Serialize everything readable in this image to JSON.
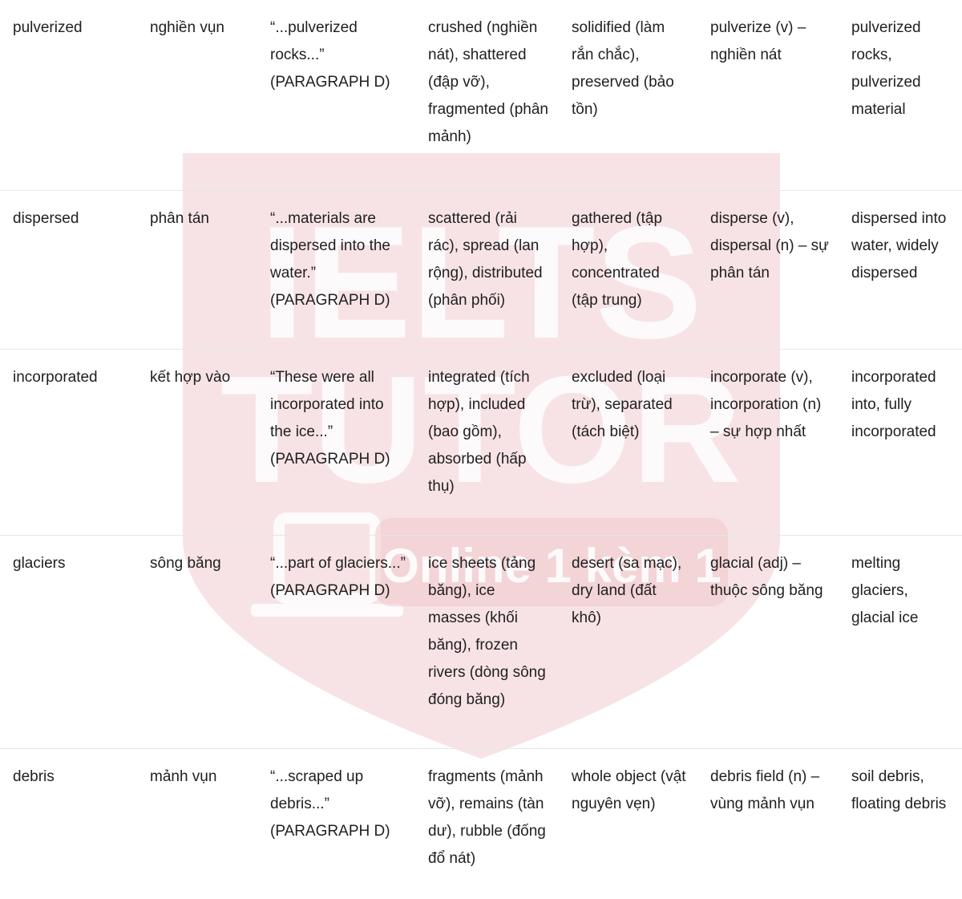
{
  "watermark": {
    "brand_line1": "IELTS",
    "brand_line2": "TUTOR",
    "tagline": "Online 1 kèm 1",
    "color": "#e8a9ad"
  },
  "rows": [
    {
      "word": "pulverized",
      "meaning": "nghiền vụn",
      "context": "“...pulverized rocks...” (PARAGRAPH D)",
      "synonyms": "crushed (nghiền nát), shattered (đập vỡ), fragmented (phân mảnh)",
      "antonyms": "solidified (làm rắn chắc), preserved (bảo tồn)",
      "word_family": "pulverize (v) – nghiền nát",
      "collocations": "pulverized rocks, pulverized material"
    },
    {
      "word": "dispersed",
      "meaning": "phân tán",
      "context": "“...materials are dispersed into the water.” (PARAGRAPH D)",
      "synonyms": "scattered (rải rác), spread (lan rộng), distributed (phân phối)",
      "antonyms": "gathered (tập hợp), concentrated (tập trung)",
      "word_family": "disperse (v), dispersal (n) – sự phân tán",
      "collocations": "dispersed into water, widely dispersed"
    },
    {
      "word": "incorporated",
      "meaning": "kết hợp vào",
      "context": "“These were all incorporated into the ice...” (PARAGRAPH D)",
      "synonyms": "integrated (tích hợp), included (bao gồm), absorbed (hấp thụ)",
      "antonyms": "excluded (loại trừ), separated (tách biệt)",
      "word_family": "incorporate (v), incorporation (n) – sự hợp nhất",
      "collocations": "incorporated into, fully incorporated"
    },
    {
      "word": "glaciers",
      "meaning": "sông băng",
      "context": "“...part of glaciers...” (PARAGRAPH D)",
      "synonyms": "ice sheets (tảng băng), ice masses (khối băng), frozen rivers (dòng sông đóng băng)",
      "antonyms": "desert (sa mạc), dry land (đất khô)",
      "word_family": "glacial (adj) – thuộc sông băng",
      "collocations": "melting glaciers, glacial ice"
    },
    {
      "word": "debris",
      "meaning": "mảnh vụn",
      "context": "“...scraped up debris...” (PARAGRAPH D)",
      "synonyms": "fragments (mảnh vỡ), remains (tàn dư), rubble (đống đổ nát)",
      "antonyms": "whole object (vật nguyên vẹn)",
      "word_family": "debris field (n) – vùng mảnh vụn",
      "collocations": "soil debris, floating debris"
    }
  ]
}
